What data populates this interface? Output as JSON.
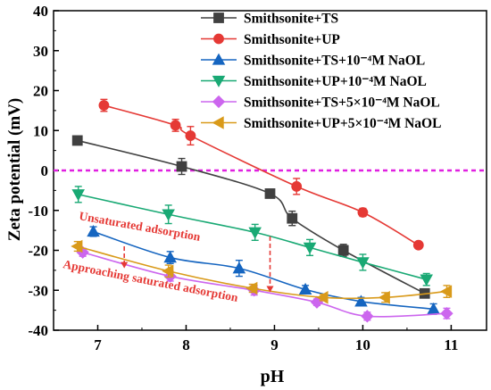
{
  "chart_data": {
    "type": "scatter",
    "xlabel": "pH",
    "ylabel": "Zeta potential (mV)",
    "xlim": [
      6.5,
      11.4
    ],
    "ylim": [
      -40,
      40
    ],
    "x_ticks": [
      7,
      8,
      9,
      10,
      11
    ],
    "y_ticks": [
      -40,
      -30,
      -20,
      -10,
      0,
      10,
      20,
      30,
      40
    ],
    "zero_line": {
      "y": 0,
      "color": "#e020e0",
      "style": "dashed"
    },
    "legend_position": "top-right",
    "series": [
      {
        "name": "Smithsonite+TS",
        "color": "#404040",
        "marker": "square",
        "points": [
          {
            "x": 6.77,
            "y": 7.5,
            "err": 1.0
          },
          {
            "x": 7.95,
            "y": 1.0,
            "err": 2.0
          },
          {
            "x": 8.95,
            "y": -5.8,
            "err": 1.0
          },
          {
            "x": 9.2,
            "y": -12.0,
            "err": 1.8
          },
          {
            "x": 9.78,
            "y": -20.0,
            "err": 1.5
          },
          {
            "x": 10.7,
            "y": -30.8,
            "err": 1.0
          }
        ]
      },
      {
        "name": "Smithsonite+UP",
        "color": "#e53935",
        "marker": "circle",
        "points": [
          {
            "x": 7.07,
            "y": 16.3,
            "err": 1.5
          },
          {
            "x": 7.88,
            "y": 11.3,
            "err": 1.5
          },
          {
            "x": 8.05,
            "y": 8.7,
            "err": 2.3
          },
          {
            "x": 9.25,
            "y": -4.0,
            "err": 2.0
          },
          {
            "x": 10.0,
            "y": -10.5,
            "err": 1.0
          },
          {
            "x": 10.63,
            "y": -18.7,
            "err": 0.8
          }
        ]
      },
      {
        "name": "Smithsonite+TS+10⁻⁴M NaOL",
        "color": "#1565c0",
        "marker": "triangle-up",
        "points": [
          {
            "x": 6.95,
            "y": -15.3,
            "err": 1.2
          },
          {
            "x": 7.82,
            "y": -21.8,
            "err": 1.5
          },
          {
            "x": 8.6,
            "y": -24.5,
            "err": 2.0
          },
          {
            "x": 9.35,
            "y": -29.8,
            "err": 1.0
          },
          {
            "x": 9.98,
            "y": -32.8,
            "err": 1.0
          },
          {
            "x": 10.8,
            "y": -34.7,
            "err": 1.3
          }
        ]
      },
      {
        "name": "Smithsonite+UP+10⁻⁴M NaOL",
        "color": "#19a974",
        "marker": "triangle-down",
        "points": [
          {
            "x": 6.78,
            "y": -6.0,
            "err": 2.0
          },
          {
            "x": 7.8,
            "y": -11.0,
            "err": 2.3
          },
          {
            "x": 8.78,
            "y": -15.5,
            "err": 2.0
          },
          {
            "x": 9.4,
            "y": -19.3,
            "err": 2.0
          },
          {
            "x": 10.0,
            "y": -23.0,
            "err": 2.0
          },
          {
            "x": 10.72,
            "y": -27.3,
            "err": 1.5
          }
        ]
      },
      {
        "name": "Smithsonite+TS+5×10⁻⁴M NaOL",
        "color": "#cc66ee",
        "marker": "diamond",
        "points": [
          {
            "x": 6.83,
            "y": -20.5,
            "err": 1.0
          },
          {
            "x": 7.82,
            "y": -26.5,
            "err": 1.2
          },
          {
            "x": 8.77,
            "y": -30.0,
            "err": 1.2
          },
          {
            "x": 9.48,
            "y": -33.0,
            "err": 0.8
          },
          {
            "x": 10.05,
            "y": -36.5,
            "err": 1.0
          },
          {
            "x": 10.95,
            "y": -35.8,
            "err": 1.3
          }
        ]
      },
      {
        "name": "Smithsonite+UP+5×10⁻⁴M NaOL",
        "color": "#d99a1a",
        "marker": "triangle-left",
        "points": [
          {
            "x": 6.77,
            "y": -19.0,
            "err": 1.2
          },
          {
            "x": 7.8,
            "y": -25.2,
            "err": 1.5
          },
          {
            "x": 8.75,
            "y": -29.5,
            "err": 1.0
          },
          {
            "x": 9.55,
            "y": -31.8,
            "err": 0.8
          },
          {
            "x": 10.25,
            "y": -31.8,
            "err": 1.2
          },
          {
            "x": 10.95,
            "y": -30.3,
            "err": 1.5
          }
        ]
      }
    ],
    "annotations": [
      {
        "text": "Unsaturated adsorption",
        "color": "#e53935"
      },
      {
        "text": "Approaching saturated adsorption",
        "color": "#e53935"
      }
    ],
    "arrows": [
      {
        "x": 7.3,
        "y_from": -19.0,
        "y_to": -24.5,
        "color": "#e53935"
      },
      {
        "x": 8.95,
        "y_from": -16.5,
        "y_to": -30.5,
        "color": "#e53935"
      }
    ]
  }
}
